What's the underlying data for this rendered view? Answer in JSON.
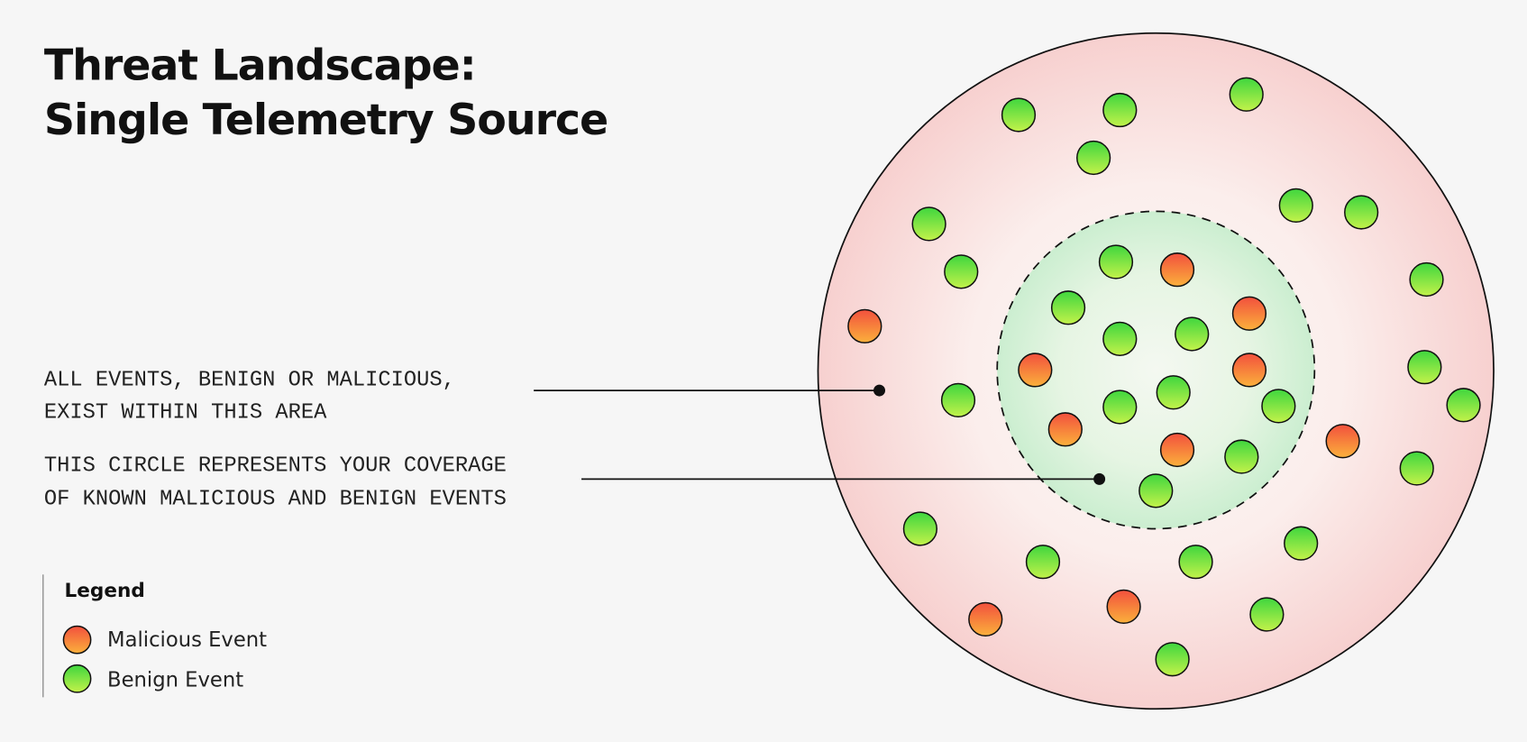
{
  "header": {
    "title": [
      "Threat Landscape:",
      "Single Telemetry Source"
    ]
  },
  "annotations": [
    {
      "lines": [
        "ALL EVENTS, BENIGN OR MALICIOUS,",
        "EXIST WITHIN THIS AREA"
      ]
    },
    {
      "lines": [
        "THIS CIRCLE REPRESENTS YOUR COVERAGE",
        "OF KNOWN MALICIOUS AND BENIGN EVENTS"
      ]
    }
  ],
  "legend": {
    "title": "Legend",
    "items": [
      "Malicious Event",
      "Benign Event"
    ]
  }
}
